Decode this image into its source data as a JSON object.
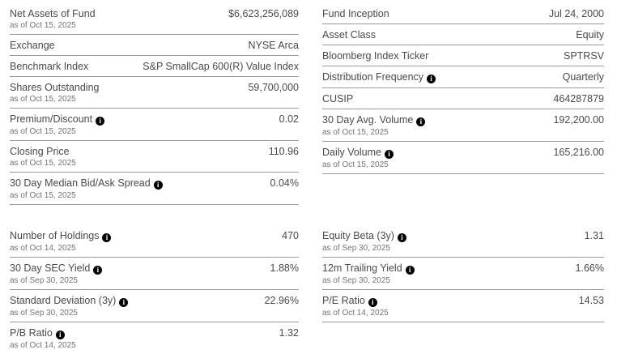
{
  "icons": {
    "info_glyph": "i"
  },
  "colors": {
    "background": "#ffffff",
    "text": "#4a4a4a",
    "subtext": "#757575",
    "divider": "#999999",
    "info_icon_bg": "#000000",
    "info_icon_fg": "#ffffff"
  },
  "columns": {
    "left": {
      "sections": [
        {
          "rows": [
            {
              "label": "Net Assets of Fund",
              "asof": "as of Oct 15, 2025",
              "value": "$6,623,256,089",
              "info": false
            },
            {
              "label": "Exchange",
              "value": "NYSE Arca",
              "info": false
            },
            {
              "label": "Benchmark Index",
              "value": "S&P SmallCap 600(R) Value Index",
              "info": false
            },
            {
              "label": "Shares Outstanding",
              "asof": "as of Oct 15, 2025",
              "value": "59,700,000",
              "info": false
            },
            {
              "label": "Premium/Discount",
              "asof": "as of Oct 15, 2025",
              "value": "0.02",
              "info": true
            },
            {
              "label": "Closing Price",
              "asof": "as of Oct 15, 2025",
              "value": "110.96",
              "info": false
            },
            {
              "label": "30 Day Median Bid/Ask Spread",
              "asof": "as of Oct 15, 2025",
              "value": "0.04%",
              "info": true
            }
          ]
        },
        {
          "rows": [
            {
              "label": "Number of Holdings",
              "asof": "as of Oct 14, 2025",
              "value": "470",
              "info": true
            },
            {
              "label": "30 Day SEC Yield",
              "asof": "as of Sep 30, 2025",
              "value": "1.88%",
              "info": true
            },
            {
              "label": "Standard Deviation (3y)",
              "asof": "as of Sep 30, 2025",
              "value": "22.96%",
              "info": true
            },
            {
              "label": "P/B Ratio",
              "asof": "as of Oct 14, 2025",
              "value": "1.32",
              "info": true
            }
          ]
        }
      ]
    },
    "right": {
      "sections": [
        {
          "rows": [
            {
              "label": "Fund Inception",
              "value": "Jul 24, 2000",
              "info": false
            },
            {
              "label": "Asset Class",
              "value": "Equity",
              "info": false
            },
            {
              "label": "Bloomberg Index Ticker",
              "value": "SPTRSV",
              "info": false
            },
            {
              "label": "Distribution Frequency",
              "value": "Quarterly",
              "info": true
            },
            {
              "label": "CUSIP",
              "value": "464287879",
              "info": false
            },
            {
              "label": "30 Day Avg. Volume",
              "asof": "as of Oct 15, 2025",
              "value": "192,200.00",
              "info": true
            },
            {
              "label": "Daily Volume",
              "asof": "as of Oct 15, 2025",
              "value": "165,216.00",
              "info": true
            }
          ]
        },
        {
          "rows": [
            {
              "label": "Equity Beta (3y)",
              "asof": "as of Sep 30, 2025",
              "value": "1.31",
              "info": true
            },
            {
              "label": "12m Trailing Yield",
              "asof": "as of Sep 30, 2025",
              "value": "1.66%",
              "info": true
            },
            {
              "label": "P/E Ratio",
              "asof": "as of Oct 14, 2025",
              "value": "14.53",
              "info": true
            }
          ]
        }
      ]
    }
  }
}
